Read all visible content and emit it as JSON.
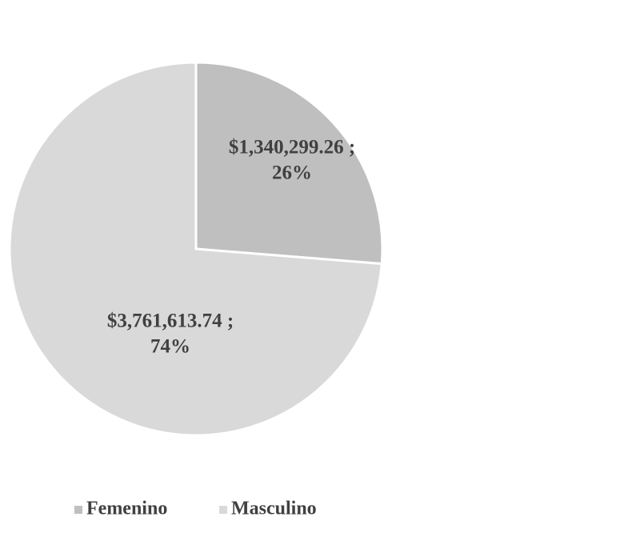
{
  "chart_data": {
    "type": "pie",
    "categories": [
      "Femenino",
      "Masculino"
    ],
    "values": [
      1340299.26,
      3761613.74
    ],
    "value_labels": [
      "$1,340,299.26 ;",
      "$3,761,613.74 ;"
    ],
    "percent_labels": [
      "26%",
      "74%"
    ],
    "colors": [
      "#bfbfbf",
      "#d9d9d9"
    ],
    "legend": "bottom"
  }
}
